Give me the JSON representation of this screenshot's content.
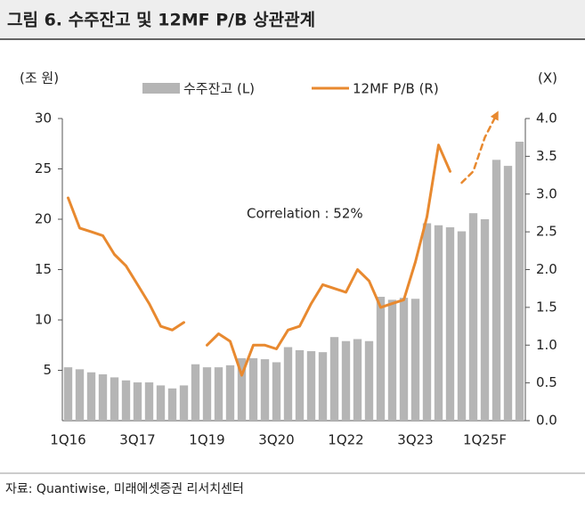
{
  "chart_data": {
    "type": "bar_line",
    "title": "그림 6. 수주잔고 및 12MF P/B 상관관계",
    "source": "자료: Quantiwise, 미래에셋증권 리서치센터",
    "y_label": "(조 원)",
    "y2_label": "(X)",
    "annotation": "Correlation : 52%",
    "categories": [
      "1Q16",
      null,
      null,
      null,
      null,
      null,
      "3Q17",
      null,
      null,
      null,
      null,
      null,
      "1Q19",
      null,
      null,
      null,
      null,
      null,
      "3Q20",
      null,
      null,
      null,
      null,
      null,
      "1Q22",
      null,
      null,
      null,
      null,
      null,
      "3Q23",
      null,
      null,
      null,
      null,
      null,
      "1Q25F",
      null,
      null,
      null
    ],
    "series": [
      {
        "name": "수주잔고 (L)",
        "color": "#b5b5b5",
        "kind": "bar",
        "values": [
          5.3,
          5.1,
          4.8,
          4.6,
          4.3,
          4.0,
          3.8,
          3.8,
          3.5,
          3.2,
          3.5,
          5.6,
          5.3,
          5.3,
          5.5,
          6.2,
          6.2,
          6.1,
          5.8,
          7.3,
          7.0,
          6.9,
          6.8,
          8.3,
          7.9,
          8.1,
          7.9,
          12.3,
          12.0,
          12.2,
          12.1,
          19.6,
          19.4,
          19.2,
          18.8,
          20.6,
          20.0,
          25.9,
          25.3,
          27.7
        ]
      },
      {
        "name": "12MF P/B (R)",
        "color": "#e8892f",
        "kind": "line",
        "axis": "y2",
        "dashed_from": 34,
        "values": [
          2.95,
          2.55,
          2.5,
          2.45,
          2.2,
          2.05,
          1.8,
          1.55,
          1.25,
          1.2,
          1.3,
          null,
          1.0,
          1.15,
          1.05,
          0.6,
          1.0,
          1.0,
          0.95,
          1.2,
          1.25,
          1.55,
          1.8,
          1.75,
          1.7,
          2.0,
          1.85,
          1.5,
          1.55,
          1.6,
          2.1,
          2.7,
          3.65,
          3.3,
          3.15,
          3.3,
          3.75,
          4.05,
          null,
          null
        ]
      }
    ],
    "ylim": [
      0,
      30
    ],
    "yticks": [
      5,
      10,
      15,
      20,
      25,
      30
    ],
    "y2lim": [
      0,
      4
    ],
    "y2ticks": [
      {
        "value": 0,
        "label": "0.0"
      },
      0.5,
      {
        "value": 1,
        "label": "1.0"
      },
      1.5,
      {
        "value": 2,
        "label": "2.0"
      },
      2.5,
      {
        "value": 3,
        "label": "3.0"
      },
      3.5,
      {
        "value": 4,
        "label": "4.0"
      }
    ],
    "grid": false
  }
}
